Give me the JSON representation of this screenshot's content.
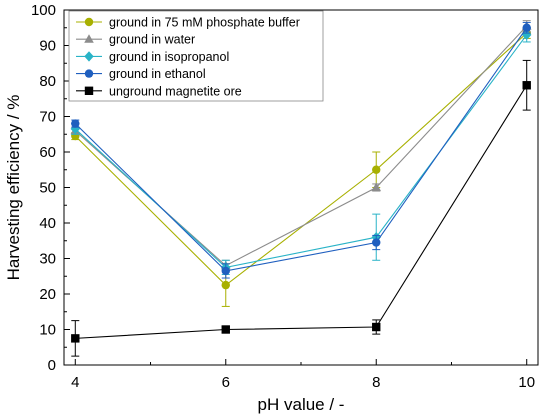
{
  "chart_data": {
    "type": "line",
    "xlabel": "pH value / -",
    "ylabel": "Harvesting efficiency / %",
    "x": [
      4,
      6,
      8,
      10
    ],
    "xlim": [
      3.85,
      10.15
    ],
    "ylim": [
      0,
      100
    ],
    "xticks": [
      "4",
      "6",
      "8",
      "10"
    ],
    "yticks": [
      "0",
      "10",
      "20",
      "30",
      "40",
      "50",
      "60",
      "70",
      "80",
      "90",
      "100"
    ],
    "legend_position": "top-left",
    "series": [
      {
        "name": "ground in 75 mM phosphate buffer",
        "color": "#a8b000",
        "marker": "circle",
        "values": [
          64.5,
          22.5,
          55.0,
          93.5
        ],
        "err": [
          1.0,
          6.0,
          5.0,
          1.5
        ]
      },
      {
        "name": "ground in water",
        "color": "#8c8c8c",
        "marker": "triangle",
        "values": [
          66.0,
          28.0,
          50.0,
          95.5
        ],
        "err": [
          1.0,
          1.5,
          1.0,
          1.5
        ]
      },
      {
        "name": "ground in isopropanol",
        "color": "#29b3c7",
        "marker": "diamond",
        "values": [
          66.5,
          27.5,
          36.0,
          93.0
        ],
        "err": [
          1.5,
          2.0,
          6.5,
          2.0
        ]
      },
      {
        "name": "ground in ethanol",
        "color": "#1f5fbf",
        "marker": "circle",
        "values": [
          68.0,
          26.5,
          34.5,
          95.0
        ],
        "err": [
          1.0,
          2.0,
          2.0,
          1.5
        ]
      },
      {
        "name": "unground magnetite ore",
        "color": "#000000",
        "marker": "square",
        "values": [
          7.5,
          10.0,
          10.7,
          78.8
        ],
        "err": [
          5.0,
          0.8,
          2.0,
          7.0
        ]
      }
    ]
  }
}
